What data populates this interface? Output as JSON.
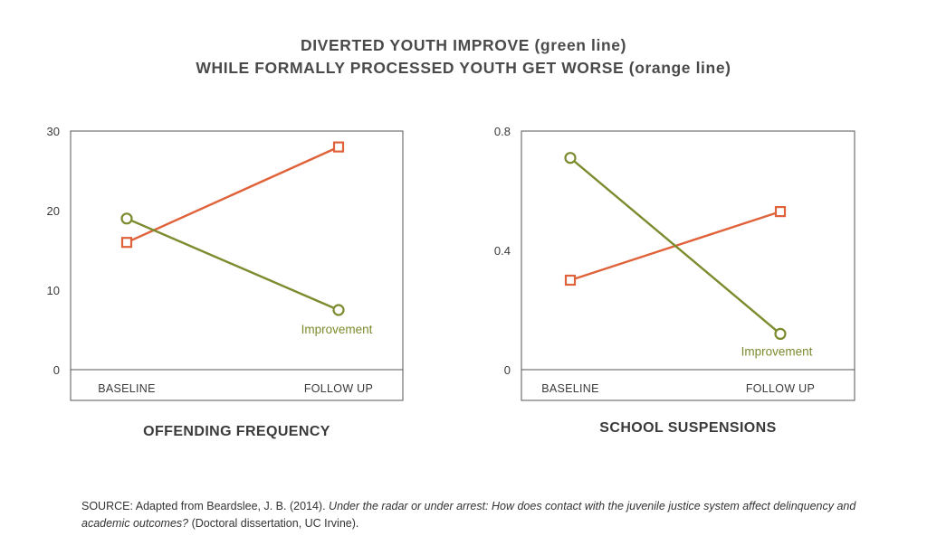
{
  "title": {
    "line1": "DIVERTED YOUTH IMPROVE (green line)",
    "line2": "WHILE FORMALLY PROCESSED YOUTH GET WORSE (orange line)"
  },
  "colors": {
    "green": "#7a8c2e",
    "orange": "#e0623a",
    "axis": "#555555"
  },
  "chart_data": [
    {
      "type": "line",
      "title": "OFFENDING FREQUENCY",
      "categories": [
        "BASELINE",
        "FOLLOW UP"
      ],
      "ylim": [
        0,
        30
      ],
      "yticks": [
        "0",
        "10",
        "20",
        "30"
      ],
      "series": [
        {
          "color": "orange",
          "marker": "square",
          "values": [
            16,
            28
          ]
        },
        {
          "color": "green",
          "marker": "circle",
          "values": [
            19,
            7.5
          ]
        }
      ],
      "annotation": "Improvement"
    },
    {
      "type": "line",
      "title": "SCHOOL SUSPENSIONS",
      "categories": [
        "BASELINE",
        "FOLLOW UP"
      ],
      "ylim": [
        0,
        0.8
      ],
      "yticks": [
        "0",
        "0.4",
        "0.8"
      ],
      "series": [
        {
          "color": "orange",
          "marker": "square",
          "values": [
            0.3,
            0.53
          ]
        },
        {
          "color": "green",
          "marker": "circle",
          "values": [
            0.71,
            0.12
          ]
        }
      ],
      "annotation": "Improvement"
    }
  ],
  "source": {
    "prefix": "SOURCE: Adapted from Beardslee, J. B. (2014). ",
    "italic": "Under the radar or under arrest: How does contact with the juvenile justice system affect delinquency and academic outcomes?",
    "suffix": " (Doctoral dissertation, UC Irvine)."
  }
}
